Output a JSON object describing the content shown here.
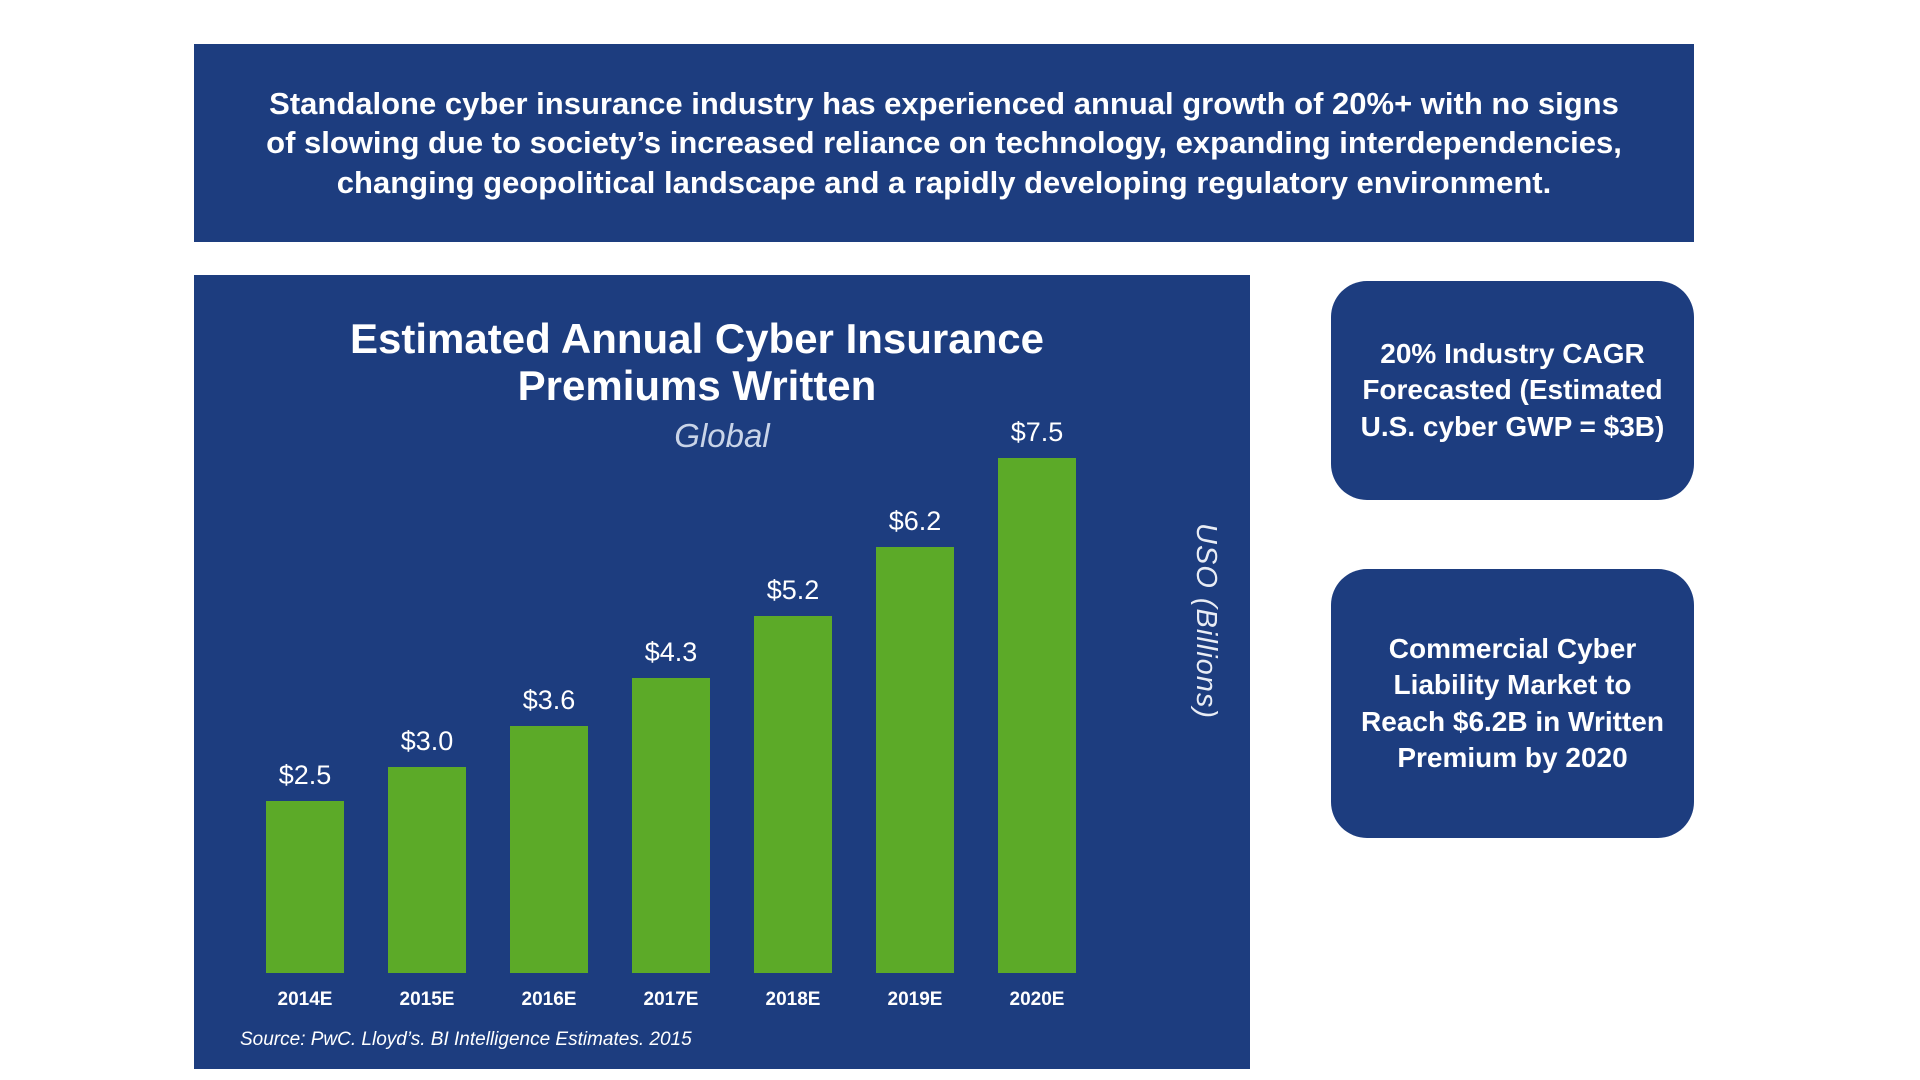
{
  "header": {
    "text": "Standalone cyber insurance industry has experienced annual growth of 20%+ with no signs of slowing due to society’s increased reliance on technology, expanding interdependencies, changing geopolitical landscape and a rapidly developing regulatory environment."
  },
  "chart_data": {
    "type": "bar",
    "title": "Estimated Annual Cyber Insurance Premiums Written",
    "subtitle": "Global",
    "categories": [
      "2014E",
      "2015E",
      "2016E",
      "2017E",
      "2018E",
      "2019E",
      "2020E"
    ],
    "values": [
      2.5,
      3.0,
      3.6,
      4.3,
      5.2,
      6.2,
      7.5
    ],
    "value_labels": [
      "$2.5",
      "$3.0",
      "$3.6",
      "$4.3",
      "$5.2",
      "$6.2",
      "$7.5"
    ],
    "xlabel": "",
    "ylabel": "USO (Billions)",
    "ylim": [
      0,
      7.5
    ],
    "grid": "off",
    "legend": "none",
    "bar_color": "#5caa28",
    "source": "Source: PwC. Lloyd’s. BI Intelligence Estimates. 2015"
  },
  "callouts": [
    {
      "text": "20% Industry CAGR Forecasted (Estimated U.S. cyber GWP = $3B)"
    },
    {
      "text": "Commercial Cyber Liability Market to Reach $6.2B in Written Premium by 2020"
    }
  ],
  "colors": {
    "navy": "#1d3d7f",
    "green": "#5caa28",
    "background": "#ffffff"
  }
}
